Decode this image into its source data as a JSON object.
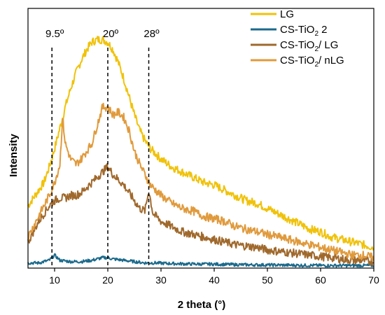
{
  "chart_data": {
    "type": "line",
    "xlabel": "2 theta (°)",
    "ylabel": "Intensity",
    "xlim": [
      5,
      70
    ],
    "ylim": [
      0,
      100
    ],
    "x_ticks": [
      "10",
      "20",
      "30",
      "40",
      "50",
      "60",
      "70"
    ],
    "y_ticks_shown": false,
    "grid": false,
    "legend_position": "top-right",
    "legend": [
      {
        "base": "LG",
        "sub": "",
        "suffix": "",
        "color": "#F0C20A"
      },
      {
        "base": "CS-TiO",
        "sub": "2",
        "suffix": " 2",
        "color": "#1B6A8C"
      },
      {
        "base": "CS-TiO",
        "sub": "2",
        "suffix": "/ LG",
        "color": "#A0692C"
      },
      {
        "base": "CS-TiO",
        "sub": "2",
        "suffix": "/ nLG",
        "color": "#E09A3C"
      }
    ],
    "annotations": [
      {
        "x": 9.5,
        "label": "9.5º"
      },
      {
        "x": 20,
        "label": "20º"
      },
      {
        "x": 27.7,
        "label": "28º"
      }
    ],
    "series": [
      {
        "color": "#F0C20A",
        "x": [
          5,
          6,
          7,
          8,
          9,
          10,
          11,
          12,
          13,
          14,
          15,
          16,
          17,
          18,
          19,
          20,
          21,
          22,
          23,
          24,
          25,
          26,
          27,
          28,
          29,
          30,
          32,
          34,
          36,
          38,
          40,
          42,
          44,
          46,
          48,
          50,
          52,
          54,
          56,
          58,
          60,
          62,
          64,
          66,
          68,
          70
        ],
        "y": [
          24,
          27,
          30,
          33,
          39,
          46,
          54,
          62,
          69,
          75,
          80,
          84,
          87,
          88,
          88,
          87,
          84,
          79,
          73,
          66,
          59,
          53,
          49,
          46,
          44,
          42,
          39,
          37,
          35,
          33,
          32,
          30,
          28,
          26,
          25,
          23,
          21,
          19,
          17,
          15,
          14,
          12,
          11,
          10,
          9,
          8
        ]
      },
      {
        "color": "#1B6A8C",
        "x": [
          5,
          7,
          9,
          10,
          11,
          13,
          15,
          17,
          19,
          20,
          21,
          23,
          25,
          27,
          29,
          31,
          35,
          40,
          45,
          50,
          55,
          60,
          65,
          70
        ],
        "y": [
          2,
          2,
          3,
          5,
          3,
          2.5,
          2.5,
          3,
          4,
          4,
          3.5,
          3,
          2.5,
          2,
          2,
          1.8,
          1.6,
          1.5,
          1.3,
          1.2,
          1.1,
          1,
          1,
          1
        ]
      },
      {
        "color": "#A0692C",
        "x": [
          5,
          6,
          7,
          8,
          9,
          10,
          11,
          12,
          13,
          14,
          15,
          16,
          17,
          18,
          19,
          20,
          21,
          22,
          23,
          24,
          25,
          26,
          27,
          27.7,
          28.5,
          29,
          30,
          32,
          34,
          36,
          38,
          40,
          42,
          44,
          46,
          48,
          50,
          52,
          54,
          56,
          58,
          60,
          62,
          64,
          66,
          68,
          70
        ],
        "y": [
          10,
          14,
          18,
          21,
          24,
          26,
          27,
          27,
          28,
          28,
          29,
          31,
          33,
          35,
          37,
          39,
          36,
          34,
          32,
          29,
          26,
          23,
          22,
          30,
          21,
          20,
          18,
          16,
          14,
          13,
          12,
          11,
          10,
          9,
          8.5,
          8,
          7,
          6.5,
          6,
          5.5,
          5,
          4.5,
          4,
          3.5,
          3,
          3,
          2.5
        ]
      },
      {
        "color": "#E09A3C",
        "x": [
          5,
          6,
          7,
          8,
          9,
          10,
          11,
          11.5,
          12,
          13,
          14,
          15,
          16,
          17,
          18,
          19,
          20,
          21,
          22,
          23,
          24,
          25,
          26,
          27,
          28,
          29,
          30,
          32,
          34,
          36,
          38,
          40,
          42,
          44,
          46,
          48,
          50,
          52,
          54,
          56,
          58,
          60,
          62,
          64,
          66,
          68,
          70
        ],
        "y": [
          12,
          16,
          20,
          24,
          28,
          33,
          40,
          58,
          48,
          42,
          40,
          42,
          45,
          48,
          55,
          62,
          62,
          59,
          60,
          58,
          53,
          45,
          40,
          36,
          32,
          30,
          28,
          25,
          23,
          22,
          20,
          19,
          18,
          16,
          15,
          14,
          13,
          12,
          11,
          10,
          9,
          8,
          7,
          6,
          5,
          5,
          4
        ]
      }
    ]
  }
}
